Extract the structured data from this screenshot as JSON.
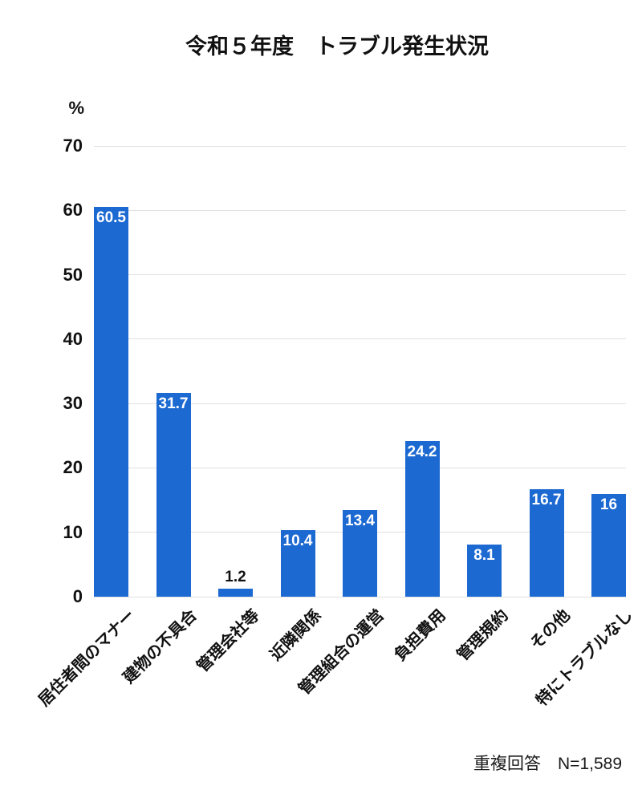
{
  "chart_data": {
    "type": "bar",
    "title": "令和５年度　トラブル発生状況",
    "unit_label": "%",
    "categories": [
      "居住者間のマナー",
      "建物の不具合",
      "管理会社等",
      "近隣関係",
      "管理組合の運営",
      "負担費用",
      "管理規約",
      "その他",
      "特にトラブルなし"
    ],
    "values": [
      60.5,
      31.7,
      1.2,
      10.4,
      13.4,
      24.2,
      8.1,
      16.7,
      16
    ],
    "value_labels": [
      "60.5",
      "31.7",
      "1.2",
      "10.4",
      "13.4",
      "24.2",
      "8.1",
      "16.7",
      "16"
    ],
    "xlabel": "",
    "ylabel": "%",
    "ylim": [
      0,
      70
    ],
    "yticks": [
      0,
      10,
      20,
      30,
      40,
      50,
      60,
      70
    ],
    "grid": true,
    "legend": "none",
    "footnote": "重複回答　N=1,589",
    "colors": {
      "bar": "#1C69D2",
      "value_label_inside": "#ffffff",
      "value_label_outside": "#111111",
      "gridline": "#e0e0e0",
      "text": "#111111"
    }
  }
}
